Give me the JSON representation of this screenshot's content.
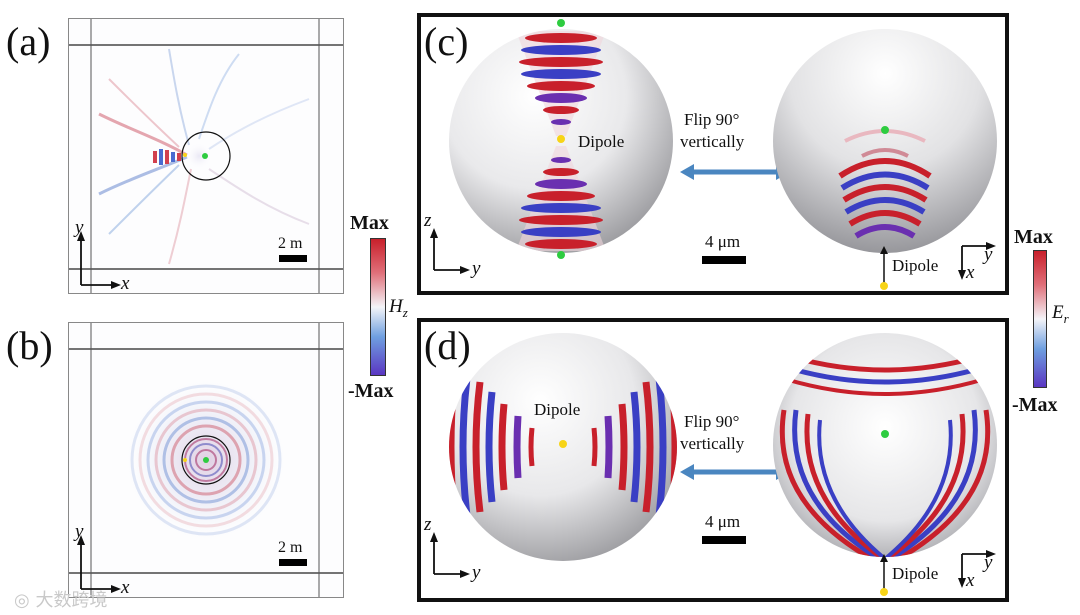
{
  "labels": {
    "a": "(a)",
    "b": "(b)",
    "c": "(c)",
    "d": "(d)"
  },
  "sim_panels": {
    "scale_bar": "2 m",
    "axis_y": "y",
    "axis_x": "x"
  },
  "colorbar_h": {
    "max": "Max",
    "min": "-Max",
    "quantity": "H",
    "subscript": "z"
  },
  "colorbar_e": {
    "max": "Max",
    "min": "-Max",
    "quantity": "E",
    "subscript": "r"
  },
  "panel_c": {
    "dipole": "Dipole",
    "flip_line1": "Flip 90°",
    "flip_line2": "vertically",
    "scale_bar": "4 μm",
    "dipole_right": "Dipole",
    "axis_z": "z",
    "axis_y": "y",
    "axis_x": "x"
  },
  "panel_d": {
    "dipole": "Dipole",
    "flip_line1": "Flip 90°",
    "flip_line2": "vertically",
    "scale_bar": "4 μm",
    "dipole_right": "Dipole",
    "axis_z": "z",
    "axis_y": "y",
    "axis_x": "x"
  },
  "colors": {
    "red": "#c8202b",
    "blue": "#3a3fc4",
    "purple": "#6a2fb0",
    "arrow": "#4a86c0",
    "green_dot": "#2ecc40",
    "yellow_dot": "#f7d417"
  },
  "watermark": "大数跨境"
}
